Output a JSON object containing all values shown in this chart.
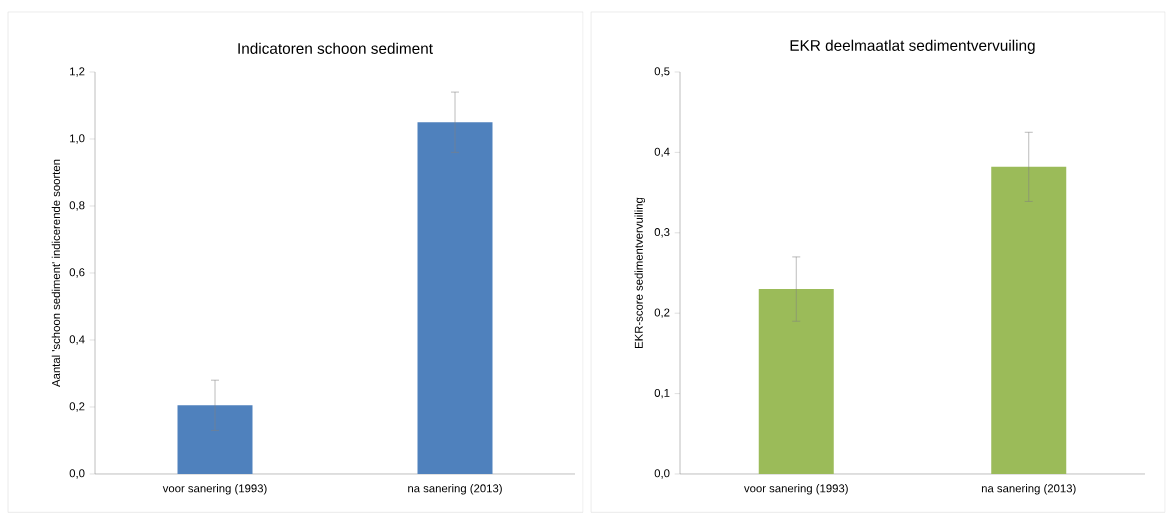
{
  "chart_data": [
    {
      "type": "bar",
      "title": "Indicatoren schoon sediment",
      "ylabel": "Aantal 'schoon sediment' indicerende soorten",
      "categories": [
        "voor sanering (1993)",
        "na sanering (2013)"
      ],
      "series": [
        {
          "color": "#4f81bd",
          "values": [
            0.205,
            1.05
          ],
          "errors": [
            0.075,
            0.09
          ]
        }
      ],
      "ylim": [
        0,
        1.2
      ],
      "yticks": [
        {
          "value": 0,
          "label": "0,0"
        },
        {
          "value": 0.2,
          "label": "0,2"
        },
        {
          "value": 0.4,
          "label": "0,4"
        },
        {
          "value": 0.6,
          "label": "0,6"
        },
        {
          "value": 0.8,
          "label": "0,8"
        },
        {
          "value": 1.0,
          "label": "1,0"
        },
        {
          "value": 1.2,
          "label": "1,2"
        }
      ]
    },
    {
      "type": "bar",
      "title": "EKR deelmaatlat sedimentvervuiling",
      "ylabel": "EKR-score sedimentvervuiling",
      "categories": [
        "voor sanering (1993)",
        "na sanering (2013)"
      ],
      "series": [
        {
          "color": "#9bbb59",
          "values": [
            0.23,
            0.382
          ],
          "errors": [
            0.04,
            0.043
          ]
        }
      ],
      "ylim": [
        0,
        0.5
      ],
      "yticks": [
        {
          "value": 0,
          "label": "0,0"
        },
        {
          "value": 0.1,
          "label": "0,1"
        },
        {
          "value": 0.2,
          "label": "0,2"
        },
        {
          "value": 0.3,
          "label": "0,3"
        },
        {
          "value": 0.4,
          "label": "0,4"
        },
        {
          "value": 0.5,
          "label": "0,5"
        }
      ]
    }
  ]
}
